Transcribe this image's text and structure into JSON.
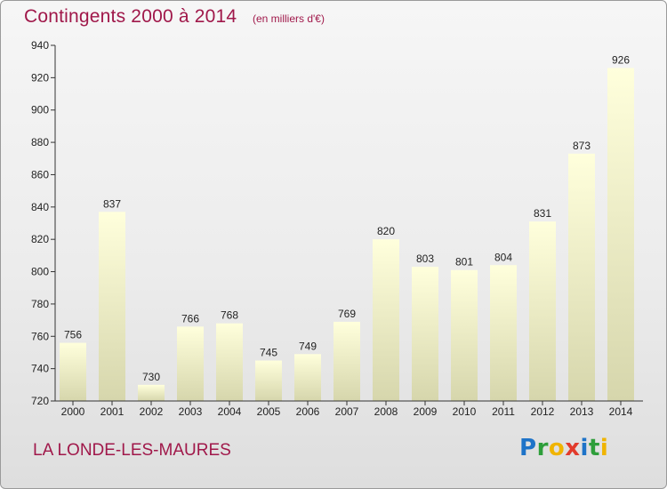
{
  "header": {
    "title": "Contingents 2000 à 2014",
    "subtitle": "(en milliers d'€)"
  },
  "footer": {
    "commune": "LA LONDE-LES-MAURES",
    "logo_text": "Proxiti",
    "logo_letters": [
      {
        "char": "P",
        "color": "#1e73c8"
      },
      {
        "char": "r",
        "color": "#2e9e3a"
      },
      {
        "char": "o",
        "color": "#f0b400"
      },
      {
        "char": "x",
        "color": "#e23b2c"
      },
      {
        "char": "i",
        "color": "#1e73c8"
      },
      {
        "char": "t",
        "color": "#2e9e3a"
      },
      {
        "char": "i",
        "color": "#f0b400"
      }
    ]
  },
  "chart_data": {
    "type": "bar",
    "title": "Contingents 2000 à 2014",
    "subtitle": "(en milliers d'€)",
    "categories": [
      "2000",
      "2001",
      "2002",
      "2003",
      "2004",
      "2005",
      "2006",
      "2007",
      "2008",
      "2009",
      "2010",
      "2011",
      "2012",
      "2013",
      "2014"
    ],
    "values": [
      756,
      837,
      730,
      766,
      768,
      745,
      749,
      769,
      820,
      803,
      801,
      804,
      831,
      873,
      926
    ],
    "ylim": [
      720,
      940
    ],
    "yticks": [
      720,
      740,
      760,
      780,
      800,
      820,
      840,
      860,
      880,
      900,
      920,
      940
    ],
    "grid": false,
    "data_labels": true,
    "colors": {
      "bar_top": "#ffffdc",
      "bar_bottom": "#d6d6ac",
      "axis": "#333333",
      "text": "#a0184a"
    }
  }
}
